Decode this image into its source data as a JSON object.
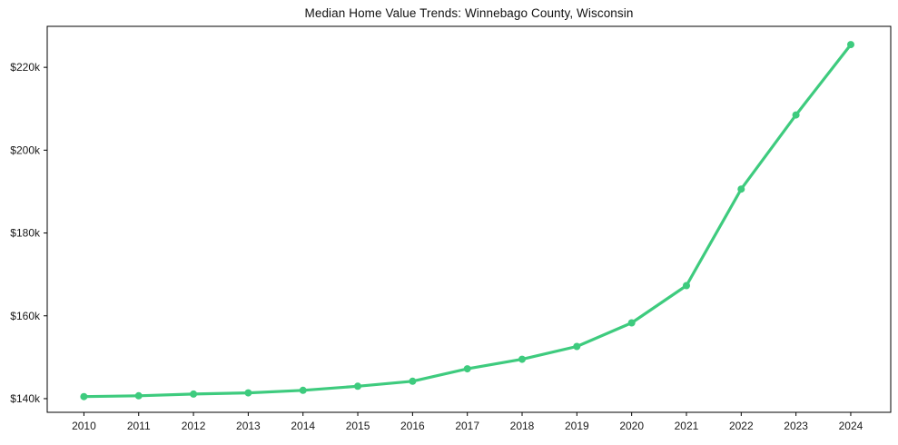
{
  "title": "Median Home Value Trends: Winnebago County, Wisconsin",
  "colors": {
    "line": "#3ecb7e",
    "marker": "#3ecb7e",
    "text": "#1a1a1a",
    "frame": "#000000",
    "background": "#ffffff"
  },
  "chart_data": {
    "type": "line",
    "title": "Median Home Value Trends: Winnebago County, Wisconsin",
    "series_name": "Median Home Value",
    "x": [
      2010,
      2011,
      2012,
      2013,
      2014,
      2015,
      2016,
      2017,
      2018,
      2019,
      2020,
      2021,
      2022,
      2023,
      2024
    ],
    "values": [
      140500,
      140700,
      141100,
      141400,
      142000,
      143000,
      144200,
      147200,
      149500,
      152600,
      158300,
      167300,
      190600,
      208500,
      225500
    ],
    "xlabel": "",
    "ylabel": "",
    "xlim": [
      2009.33,
      2024.73
    ],
    "ylim": [
      136700,
      229900
    ],
    "x_tick_labels": [
      "2010",
      "2011",
      "2012",
      "2013",
      "2014",
      "2015",
      "2016",
      "2017",
      "2018",
      "2019",
      "2020",
      "2021",
      "2022",
      "2023",
      "2024"
    ],
    "y_ticks": [
      {
        "value": 140000,
        "label": "$140k"
      },
      {
        "value": 160000,
        "label": "$160k"
      },
      {
        "value": 180000,
        "label": "$180k"
      },
      {
        "value": 200000,
        "label": "$200k"
      },
      {
        "value": 220000,
        "label": "$220k"
      }
    ],
    "grid": false,
    "legend": "none",
    "marker": "circle",
    "line_width": 3.2,
    "marker_radius": 4
  }
}
